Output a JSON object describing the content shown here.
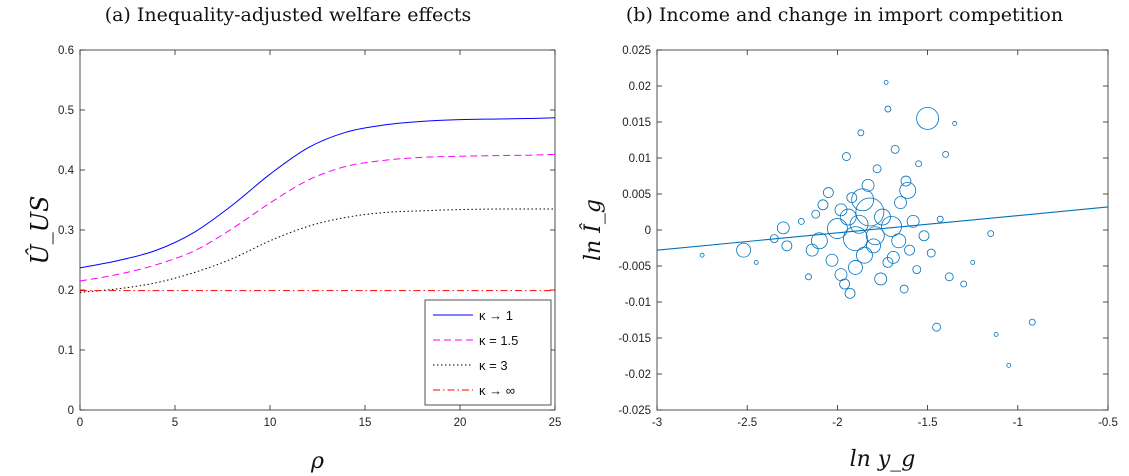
{
  "panels": {
    "a": {
      "title": "(a) Inequality-adjusted welfare effects"
    },
    "b": {
      "title": "(b) Income and change in import competition"
    }
  },
  "chart_data": [
    {
      "type": "line",
      "title": "(a) Inequality-adjusted welfare effects",
      "xlabel": "ρ",
      "ylabel": "Û_US",
      "xlim": [
        0,
        25
      ],
      "ylim": [
        0,
        0.6
      ],
      "xticks": [
        0,
        5,
        10,
        15,
        20,
        25
      ],
      "yticks": [
        0,
        0.1,
        0.2,
        0.3,
        0.4,
        0.5,
        0.6
      ],
      "x": [
        0,
        2,
        4,
        6,
        8,
        10,
        12,
        14,
        16,
        18,
        20,
        22,
        24,
        25
      ],
      "grid": false,
      "legend_position": "bottom-right",
      "series": [
        {
          "name": "κ → 1",
          "color": "#0000ff",
          "dash": "solid",
          "values": [
            0.237,
            0.249,
            0.266,
            0.296,
            0.341,
            0.393,
            0.437,
            0.463,
            0.475,
            0.481,
            0.484,
            0.485,
            0.486,
            0.487
          ]
        },
        {
          "name": "κ = 1.5",
          "color": "#ff00ff",
          "dash": "dashed",
          "values": [
            0.215,
            0.226,
            0.242,
            0.265,
            0.302,
            0.345,
            0.383,
            0.406,
            0.416,
            0.421,
            0.423,
            0.424,
            0.425,
            0.426
          ]
        },
        {
          "name": "κ = 3",
          "color": "#000000",
          "dash": "dotted",
          "values": [
            0.196,
            0.202,
            0.212,
            0.229,
            0.252,
            0.282,
            0.306,
            0.321,
            0.329,
            0.332,
            0.334,
            0.335,
            0.335,
            0.335
          ]
        },
        {
          "name": "κ → ∞",
          "color": "#ff0000",
          "dash": "dashdot",
          "values": [
            0.199,
            0.199,
            0.199,
            0.199,
            0.199,
            0.199,
            0.199,
            0.199,
            0.199,
            0.199,
            0.199,
            0.199,
            0.199,
            0.199
          ]
        }
      ]
    },
    {
      "type": "scatter",
      "title": "(b) Income and change in import competition",
      "xlabel": "ln y_g",
      "ylabel": "ln Î_g",
      "xlim": [
        -3,
        -0.5
      ],
      "ylim": [
        -0.025,
        0.025
      ],
      "xticks": [
        -3,
        -2.5,
        -2,
        -1.5,
        -1,
        -0.5
      ],
      "yticks": [
        -0.025,
        -0.02,
        -0.015,
        -0.01,
        -0.005,
        0,
        0.005,
        0.01,
        0.015,
        0.02,
        0.025
      ],
      "grid": false,
      "color": "#0072bd",
      "fit_line": {
        "x": [
          -3,
          -0.5
        ],
        "y": [
          -0.0028,
          0.0032
        ]
      },
      "points": [
        {
          "x": -2.75,
          "y": -0.0035,
          "w": 2
        },
        {
          "x": -2.52,
          "y": -0.0028,
          "w": 7
        },
        {
          "x": -2.45,
          "y": -0.0045,
          "w": 2
        },
        {
          "x": -2.35,
          "y": -0.0012,
          "w": 4
        },
        {
          "x": -2.3,
          "y": 0.0003,
          "w": 6
        },
        {
          "x": -2.28,
          "y": -0.0022,
          "w": 5
        },
        {
          "x": -2.2,
          "y": 0.0012,
          "w": 3
        },
        {
          "x": -2.16,
          "y": -0.0065,
          "w": 3
        },
        {
          "x": -2.12,
          "y": 0.0022,
          "w": 4
        },
        {
          "x": -2.1,
          "y": -0.0015,
          "w": 8
        },
        {
          "x": -2.05,
          "y": 0.0052,
          "w": 5
        },
        {
          "x": -2.03,
          "y": -0.0042,
          "w": 6
        },
        {
          "x": -2.0,
          "y": 0.0002,
          "w": 10
        },
        {
          "x": -1.98,
          "y": 0.0028,
          "w": 6
        },
        {
          "x": -1.96,
          "y": -0.0075,
          "w": 5
        },
        {
          "x": -1.95,
          "y": 0.0102,
          "w": 4
        },
        {
          "x": -1.93,
          "y": -0.0088,
          "w": 5
        },
        {
          "x": -1.92,
          "y": 0.0045,
          "w": 5
        },
        {
          "x": -1.9,
          "y": -0.0012,
          "w": 12
        },
        {
          "x": -1.88,
          "y": 0.0008,
          "w": 9
        },
        {
          "x": -1.87,
          "y": 0.0135,
          "w": 3
        },
        {
          "x": -1.85,
          "y": -0.0035,
          "w": 8
        },
        {
          "x": -1.83,
          "y": 0.0062,
          "w": 6
        },
        {
          "x": -1.82,
          "y": 0.0025,
          "w": 14
        },
        {
          "x": -1.8,
          "y": -0.0022,
          "w": 7
        },
        {
          "x": -1.78,
          "y": 0.0085,
          "w": 4
        },
        {
          "x": -1.76,
          "y": -0.0068,
          "w": 6
        },
        {
          "x": -1.75,
          "y": 0.0018,
          "w": 8
        },
        {
          "x": -1.73,
          "y": 0.0205,
          "w": 2
        },
        {
          "x": -1.72,
          "y": -0.0045,
          "w": 5
        },
        {
          "x": -1.7,
          "y": 0.0005,
          "w": 10
        },
        {
          "x": -1.68,
          "y": 0.0112,
          "w": 4
        },
        {
          "x": -1.66,
          "y": -0.0015,
          "w": 7
        },
        {
          "x": -1.65,
          "y": 0.0038,
          "w": 6
        },
        {
          "x": -1.63,
          "y": -0.0082,
          "w": 4
        },
        {
          "x": -1.61,
          "y": 0.0055,
          "w": 8
        },
        {
          "x": -1.6,
          "y": -0.0028,
          "w": 5
        },
        {
          "x": -1.58,
          "y": 0.0012,
          "w": 6
        },
        {
          "x": -1.56,
          "y": -0.0055,
          "w": 4
        },
        {
          "x": -1.55,
          "y": 0.0092,
          "w": 3
        },
        {
          "x": -1.52,
          "y": -0.0008,
          "w": 5
        },
        {
          "x": -1.5,
          "y": 0.0155,
          "w": 11
        },
        {
          "x": -1.48,
          "y": -0.0032,
          "w": 4
        },
        {
          "x": -1.45,
          "y": -0.0135,
          "w": 4
        },
        {
          "x": -1.43,
          "y": 0.0015,
          "w": 3
        },
        {
          "x": -1.4,
          "y": 0.0105,
          "w": 3
        },
        {
          "x": -1.38,
          "y": -0.0065,
          "w": 4
        },
        {
          "x": -1.35,
          "y": 0.0148,
          "w": 2
        },
        {
          "x": -1.3,
          "y": -0.0075,
          "w": 3
        },
        {
          "x": -1.25,
          "y": -0.0045,
          "w": 2
        },
        {
          "x": -1.15,
          "y": -0.0005,
          "w": 3
        },
        {
          "x": -1.12,
          "y": -0.0145,
          "w": 2
        },
        {
          "x": -1.05,
          "y": -0.0188,
          "w": 2
        },
        {
          "x": -0.92,
          "y": -0.0128,
          "w": 3
        },
        {
          "x": -1.72,
          "y": 0.0168,
          "w": 3
        },
        {
          "x": -1.98,
          "y": -0.0062,
          "w": 6
        },
        {
          "x": -2.08,
          "y": 0.0035,
          "w": 5
        },
        {
          "x": -1.9,
          "y": -0.0052,
          "w": 7
        },
        {
          "x": -1.79,
          "y": -0.0008,
          "w": 9
        },
        {
          "x": -1.86,
          "y": 0.0042,
          "w": 11
        },
        {
          "x": -2.14,
          "y": -0.0028,
          "w": 6
        },
        {
          "x": -1.69,
          "y": -0.0038,
          "w": 6
        },
        {
          "x": -1.94,
          "y": 0.0018,
          "w": 8
        },
        {
          "x": -1.62,
          "y": 0.0068,
          "w": 5
        }
      ]
    }
  ]
}
